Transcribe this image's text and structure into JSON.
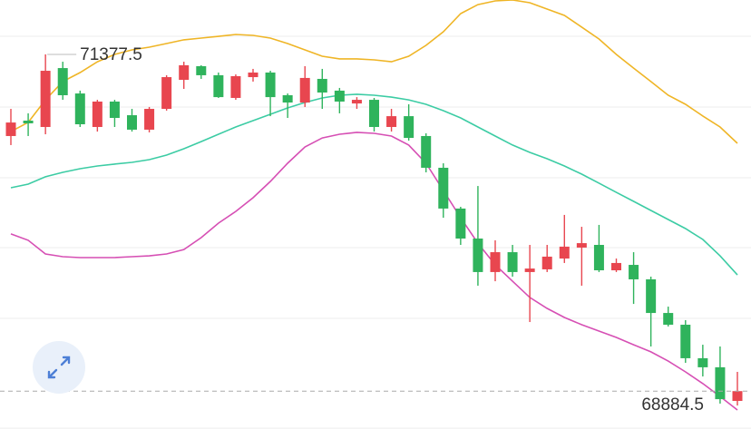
{
  "chart_data": {
    "type": "candlestick",
    "ylim": [
      68530,
      71780
    ],
    "yticks": [
      71511,
      70988,
      70464,
      69947,
      69423,
      68610
    ],
    "grid": true,
    "up_color": "#e8464f",
    "down_color": "#2fb35c",
    "open": [
      70773,
      70887,
      70840,
      71276,
      71088,
      70840,
      71028,
      70927,
      70820,
      70974,
      71189,
      71290,
      71223,
      71055,
      71209,
      71243,
      71075,
      71021,
      71196,
      71109,
      71014,
      71041,
      70840,
      70920,
      70773,
      70538,
      70236,
      70014,
      69766,
      69913,
      69766,
      69786,
      69866,
      69947,
      69967,
      69779,
      69819,
      69712,
      69463,
      69376,
      69128,
      69061,
      68812
    ],
    "high": [
      70974,
      70941,
      71377.5,
      71323,
      71109,
      71041,
      71041,
      70974,
      70988,
      71223,
      71323,
      71297,
      71243,
      71229,
      71270,
      71256,
      71088,
      71290,
      71270,
      71129,
      71061,
      71055,
      70974,
      71008,
      70793,
      70571,
      70249,
      70403,
      70001,
      69967,
      69967,
      69967,
      70189,
      70101,
      70115,
      69866,
      69913,
      69732,
      69510,
      69410,
      69228,
      69215,
      69027
    ],
    "low": [
      70706,
      70773,
      70786,
      71041,
      70840,
      70806,
      70840,
      70806,
      70800,
      70961,
      71122,
      71196,
      71055,
      71041,
      71176,
      70920,
      70907,
      70988,
      70974,
      70941,
      70974,
      70806,
      70806,
      70739,
      70504,
      70168,
      69967,
      69665,
      69698,
      69732,
      69396,
      69766,
      69833,
      69665,
      69766,
      69766,
      69530,
      69215,
      69363,
      69094,
      68993,
      68792,
      68778
    ],
    "close": [
      70873,
      70867,
      71256,
      71075,
      70860,
      71028,
      70907,
      70820,
      70974,
      71209,
      71297,
      71223,
      71061,
      71216,
      71243,
      71061,
      71021,
      71203,
      71095,
      71028,
      71041,
      70840,
      70920,
      70759,
      70538,
      70236,
      70014,
      69766,
      69913,
      69766,
      69792,
      69880,
      69954,
      69980,
      69779,
      69833,
      69712,
      69463,
      69376,
      69128,
      69061,
      68825,
      68884.5
    ],
    "bands": [
      {
        "color": "#efb526",
        "values": [
          70806,
          70874,
          71041,
          71176,
          71243,
          71323,
          71377,
          71411,
          71431,
          71458,
          71485,
          71498,
          71511,
          71525,
          71518,
          71498,
          71458,
          71411,
          71364,
          71344,
          71344,
          71337,
          71323,
          71364,
          71444,
          71545,
          71679,
          71746,
          71773,
          71780,
          71760,
          71713,
          71666,
          71579,
          71491,
          71377,
          71276,
          71176,
          71075,
          71008,
          70921,
          70840,
          70719
        ]
      },
      {
        "color": "#3ccca4",
        "values": [
          70390,
          70417,
          70471,
          70504,
          70531,
          70551,
          70565,
          70578,
          70598,
          70632,
          70679,
          70732,
          70786,
          70840,
          70887,
          70934,
          70981,
          71021,
          71055,
          71075,
          71082,
          71075,
          71061,
          71041,
          71008,
          70961,
          70907,
          70840,
          70773,
          70706,
          70652,
          70605,
          70551,
          70491,
          70424,
          70356,
          70289,
          70222,
          70155,
          70088,
          70007,
          69886,
          69745
        ]
      },
      {
        "color": "#d64fb4",
        "values": [
          70048,
          70001,
          69900,
          69880,
          69873,
          69873,
          69873,
          69880,
          69886,
          69900,
          69933,
          70021,
          70128,
          70215,
          70316,
          70437,
          70571,
          70692,
          70759,
          70786,
          70800,
          70793,
          70773,
          70706,
          70571,
          70370,
          70168,
          69980,
          69819,
          69698,
          69578,
          69497,
          69430,
          69376,
          69329,
          69282,
          69228,
          69175,
          69107,
          69027,
          68940,
          68845,
          68745
        ]
      }
    ]
  }
}
